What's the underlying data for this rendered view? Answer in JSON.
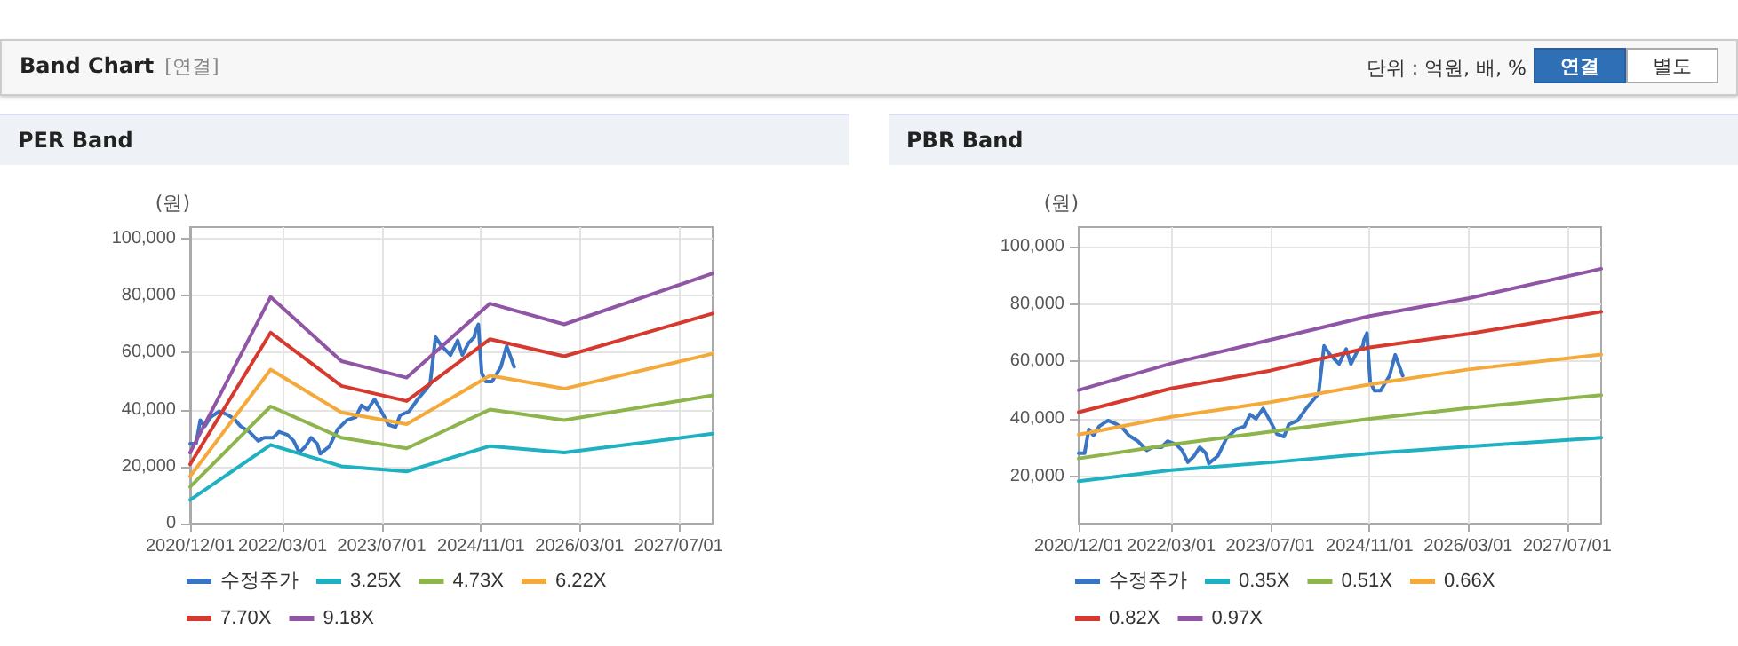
{
  "chart_data": [
    {
      "type": "other",
      "title": "Band Chart",
      "annotations": [
        "[연결]",
        "단위 : 억원, 배, %",
        "연결",
        "별도"
      ]
    },
    {
      "type": "line",
      "title": "PER Band",
      "ylabel": "(원)",
      "xlim": [
        "2020-12-01",
        "2027-12-15"
      ],
      "xticks": [
        {
          "value": "2020-12-01",
          "label": "2020/12/01"
        },
        {
          "value": "2022-03-01",
          "label": "2022/03/01"
        },
        {
          "value": "2023-07-01",
          "label": "2023/07/01"
        },
        {
          "value": "2024-11-01",
          "label": "2024/11/01"
        },
        {
          "value": "2026-03-01",
          "label": "2026/03/01"
        },
        {
          "value": "2027-07-01",
          "label": "2027/07/01"
        }
      ],
      "ylim": [
        0,
        104000
      ],
      "yticks": [
        0,
        {
          "value": 20000,
          "label": "20,000"
        },
        {
          "value": 40000,
          "label": "40,000"
        },
        {
          "value": 60000,
          "label": "60,000"
        },
        {
          "value": 80000,
          "label": "80,000"
        },
        {
          "value": 100000,
          "label": "100,000"
        }
      ],
      "grid": true,
      "legend": "bottom",
      "marker": "none",
      "line_style": "solid",
      "series": [
        {
          "name": "수정주가",
          "color": "#3a75c4",
          "x": [
            "2020-12-01",
            "2020-12-30",
            "2021-01-20",
            "2021-02-12",
            "2021-03-11",
            "2021-04-24",
            "2021-06-08",
            "2021-07-06",
            "2021-08-05",
            "2021-09-18",
            "2021-11-01",
            "2021-11-30",
            "2022-01-13",
            "2022-02-11",
            "2022-03-25",
            "2022-04-24",
            "2022-05-22",
            "2022-06-21",
            "2022-07-19",
            "2022-08-18",
            "2022-09-02",
            "2022-10-16",
            "2022-11-28",
            "2023-01-12",
            "2023-02-24",
            "2023-03-24",
            "2023-04-22",
            "2023-05-27",
            "2023-07-04",
            "2023-08-03",
            "2023-09-07",
            "2023-09-30",
            "2023-11-13",
            "2023-12-25",
            "2024-02-24",
            "2024-03-22",
            "2024-04-21",
            "2024-06-04",
            "2024-07-09",
            "2024-08-01",
            "2024-08-31",
            "2024-09-29",
            "2024-10-04",
            "2024-10-19",
            "2024-11-04",
            "2024-11-25",
            "2024-12-25",
            "2025-02-07",
            "2025-03-07",
            "2025-04-13"
          ],
          "values": [
            28000,
            28000,
            36300,
            34200,
            37300,
            39400,
            38000,
            36700,
            34200,
            32200,
            29000,
            30100,
            30100,
            32200,
            31100,
            29000,
            24900,
            27000,
            30100,
            28000,
            24500,
            27000,
            33200,
            36300,
            37300,
            41500,
            40000,
            43600,
            38800,
            34700,
            33800,
            38000,
            39400,
            43600,
            48800,
            65400,
            62300,
            59100,
            64300,
            59100,
            63300,
            65400,
            67400,
            69900,
            52900,
            49800,
            49800,
            55000,
            62300,
            55000
          ]
        },
        {
          "name": "3.25X",
          "color": "#1fb1c1",
          "x": [
            "2020-12-01",
            "2022-01-01",
            "2022-12-15",
            "2023-11-01",
            "2024-12-15",
            "2025-12-15",
            "2027-12-15"
          ],
          "values": [
            8300,
            27600,
            20100,
            18300,
            27200,
            24900,
            31500
          ]
        },
        {
          "name": "4.73X",
          "color": "#8db54b",
          "x": [
            "2020-12-01",
            "2022-01-01",
            "2022-12-15",
            "2023-11-01",
            "2024-12-15",
            "2025-12-15",
            "2027-12-15"
          ],
          "values": [
            12900,
            41100,
            30100,
            26400,
            40000,
            36300,
            45000
          ]
        },
        {
          "name": "6.22X",
          "color": "#f4a93b",
          "x": [
            "2020-12-01",
            "2022-01-01",
            "2022-12-15",
            "2023-11-01",
            "2024-12-15",
            "2025-12-15",
            "2027-12-15"
          ],
          "values": [
            16600,
            54000,
            39000,
            34900,
            51900,
            47300,
            59600
          ]
        },
        {
          "name": "7.70X",
          "color": "#d63a2f",
          "x": [
            "2020-12-01",
            "2022-01-01",
            "2022-12-15",
            "2023-11-01",
            "2024-12-15",
            "2025-12-15",
            "2027-12-15"
          ],
          "values": [
            20800,
            67000,
            48300,
            43000,
            64700,
            58700,
            73700
          ]
        },
        {
          "name": "9.18X",
          "color": "#9056a5",
          "x": [
            "2020-12-01",
            "2022-01-01",
            "2022-12-15",
            "2023-11-01",
            "2024-12-15",
            "2025-12-15",
            "2027-12-15"
          ],
          "values": [
            24900,
            79500,
            57000,
            51200,
            77200,
            69900,
            87800
          ]
        }
      ]
    },
    {
      "type": "line",
      "title": "PBR Band",
      "ylabel": "(원)",
      "xlim": [
        "2020-12-01",
        "2027-12-15"
      ],
      "xticks": [
        {
          "value": "2020-12-01",
          "label": "2020/12/01"
        },
        {
          "value": "2022-03-01",
          "label": "2022/03/01"
        },
        {
          "value": "2023-07-01",
          "label": "2023/07/01"
        },
        {
          "value": "2024-11-01",
          "label": "2024/11/01"
        },
        {
          "value": "2026-03-01",
          "label": "2026/03/01"
        },
        {
          "value": "2027-07-01",
          "label": "2027/07/01"
        }
      ],
      "ylim": [
        3500,
        106800
      ],
      "yticks": [
        {
          "value": 20000,
          "label": "20,000"
        },
        {
          "value": 40000,
          "label": "40,000"
        },
        {
          "value": 60000,
          "label": "60,000"
        },
        {
          "value": 80000,
          "label": "80,000"
        },
        {
          "value": 100000,
          "label": "100,000"
        }
      ],
      "grid": true,
      "legend": "bottom",
      "marker": "none",
      "line_style": "solid",
      "series": [
        {
          "name": "수정주가",
          "color": "#3a75c4",
          "x": [
            "2020-12-01",
            "2020-12-30",
            "2021-01-20",
            "2021-02-12",
            "2021-03-11",
            "2021-04-24",
            "2021-06-08",
            "2021-07-06",
            "2021-08-05",
            "2021-09-18",
            "2021-11-01",
            "2021-11-30",
            "2022-01-13",
            "2022-02-11",
            "2022-03-25",
            "2022-04-24",
            "2022-05-22",
            "2022-06-21",
            "2022-07-19",
            "2022-08-18",
            "2022-09-02",
            "2022-10-16",
            "2022-11-28",
            "2023-01-12",
            "2023-02-24",
            "2023-03-24",
            "2023-04-22",
            "2023-05-27",
            "2023-07-04",
            "2023-08-03",
            "2023-09-07",
            "2023-09-30",
            "2023-11-13",
            "2023-12-25",
            "2024-02-24",
            "2024-03-22",
            "2024-04-21",
            "2024-06-04",
            "2024-07-09",
            "2024-08-01",
            "2024-08-31",
            "2024-09-29",
            "2024-10-04",
            "2024-10-19",
            "2024-11-04",
            "2024-11-25",
            "2024-12-25",
            "2025-02-07",
            "2025-03-07",
            "2025-04-13"
          ],
          "values": [
            28000,
            28000,
            36300,
            34200,
            37300,
            39400,
            38000,
            36700,
            34200,
            32200,
            29000,
            30100,
            30100,
            32200,
            31100,
            29000,
            24900,
            27000,
            30100,
            28000,
            24500,
            27000,
            33200,
            36300,
            37300,
            41500,
            40000,
            43600,
            38800,
            34700,
            33800,
            38000,
            39400,
            43600,
            48800,
            65400,
            62300,
            59100,
            64300,
            59100,
            63300,
            65400,
            67400,
            69900,
            52900,
            49800,
            49800,
            55000,
            62300,
            55000
          ]
        },
        {
          "name": "0.35X",
          "color": "#1fb1c1",
          "x": [
            "2020-12-01",
            "2022-03-01",
            "2023-07-01",
            "2024-11-01",
            "2026-03-01",
            "2027-12-15"
          ],
          "values": [
            18300,
            22100,
            24800,
            27900,
            30300,
            33400
          ]
        },
        {
          "name": "0.51X",
          "color": "#8db54b",
          "x": [
            "2020-12-01",
            "2022-03-01",
            "2023-07-01",
            "2024-11-01",
            "2026-03-01",
            "2027-12-15"
          ],
          "values": [
            26200,
            31000,
            35500,
            40000,
            43800,
            48300
          ]
        },
        {
          "name": "0.66X",
          "color": "#f4a93b",
          "x": [
            "2020-12-01",
            "2022-03-01",
            "2023-07-01",
            "2024-11-01",
            "2026-03-01",
            "2027-12-15"
          ],
          "values": [
            34500,
            40700,
            45800,
            52000,
            57200,
            62400
          ]
        },
        {
          "name": "0.82X",
          "color": "#d63a2f",
          "x": [
            "2020-12-01",
            "2022-03-01",
            "2023-07-01",
            "2024-11-01",
            "2026-03-01",
            "2027-12-15"
          ],
          "values": [
            42300,
            50600,
            56800,
            64900,
            69600,
            77300
          ]
        },
        {
          "name": "0.97X",
          "color": "#9056a5",
          "x": [
            "2020-12-01",
            "2022-03-01",
            "2023-07-01",
            "2024-11-01",
            "2026-03-01",
            "2027-12-15"
          ],
          "values": [
            50000,
            59300,
            67500,
            75800,
            82000,
            92300
          ]
        }
      ]
    }
  ]
}
